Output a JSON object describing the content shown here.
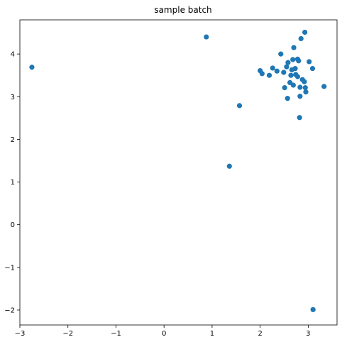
{
  "chart_data": {
    "type": "scatter",
    "title": "sample batch",
    "xlabel": "",
    "ylabel": "",
    "xlim": [
      -3.0,
      3.6
    ],
    "ylim": [
      -2.35,
      4.8
    ],
    "grid": false,
    "marker_color": "#1f77b4",
    "xticks": [
      -3,
      -2,
      -1,
      0,
      1,
      2,
      3
    ],
    "yticks": [
      -2,
      -1,
      0,
      1,
      2,
      3,
      4
    ],
    "xtick_labels": [
      "−3",
      "−2",
      "−1",
      "0",
      "1",
      "2",
      "3"
    ],
    "ytick_labels": [
      "−2",
      "−1",
      "0",
      "1",
      "2",
      "3",
      "4"
    ],
    "points": [
      {
        "x": -2.75,
        "y": 3.69
      },
      {
        "x": 0.88,
        "y": 4.4
      },
      {
        "x": 1.57,
        "y": 2.79
      },
      {
        "x": 1.36,
        "y": 1.37
      },
      {
        "x": 3.1,
        "y": -1.99
      },
      {
        "x": 2.93,
        "y": 4.51
      },
      {
        "x": 2.85,
        "y": 4.36
      },
      {
        "x": 2.7,
        "y": 4.15
      },
      {
        "x": 2.43,
        "y": 4.0
      },
      {
        "x": 2.68,
        "y": 3.87
      },
      {
        "x": 2.78,
        "y": 3.88
      },
      {
        "x": 2.8,
        "y": 3.84
      },
      {
        "x": 3.02,
        "y": 3.82
      },
      {
        "x": 2.58,
        "y": 3.8
      },
      {
        "x": 2.26,
        "y": 3.67
      },
      {
        "x": 2.55,
        "y": 3.7
      },
      {
        "x": 2.66,
        "y": 3.63
      },
      {
        "x": 2.73,
        "y": 3.66
      },
      {
        "x": 3.09,
        "y": 3.66
      },
      {
        "x": 2.35,
        "y": 3.6
      },
      {
        "x": 2.0,
        "y": 3.61
      },
      {
        "x": 2.04,
        "y": 3.54
      },
      {
        "x": 2.49,
        "y": 3.57
      },
      {
        "x": 2.19,
        "y": 3.5
      },
      {
        "x": 2.64,
        "y": 3.5
      },
      {
        "x": 2.74,
        "y": 3.52
      },
      {
        "x": 2.78,
        "y": 3.47
      },
      {
        "x": 2.88,
        "y": 3.4
      },
      {
        "x": 2.92,
        "y": 3.35
      },
      {
        "x": 2.62,
        "y": 3.33
      },
      {
        "x": 2.69,
        "y": 3.27
      },
      {
        "x": 2.83,
        "y": 3.22
      },
      {
        "x": 2.51,
        "y": 3.21
      },
      {
        "x": 2.94,
        "y": 3.21
      },
      {
        "x": 3.33,
        "y": 3.24
      },
      {
        "x": 2.95,
        "y": 3.11
      },
      {
        "x": 2.83,
        "y": 3.01
      },
      {
        "x": 2.57,
        "y": 2.96
      },
      {
        "x": 2.82,
        "y": 2.51
      }
    ]
  }
}
